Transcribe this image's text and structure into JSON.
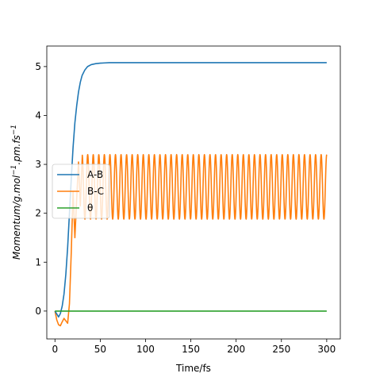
{
  "chart_data": {
    "type": "line",
    "title": "",
    "xlabel": "Time/fs",
    "ylabel_parts": {
      "base": "Momentum/g.mol",
      "sup1": "−1",
      "mid": ".pm.fs",
      "sup2": "−1"
    },
    "xlim": [
      -9,
      315
    ],
    "ylim": [
      -0.57,
      5.42
    ],
    "x_ticks": [
      0,
      50,
      100,
      150,
      200,
      250,
      300
    ],
    "y_ticks": [
      0,
      1,
      2,
      3,
      4,
      5
    ],
    "grid": false,
    "legend_position": "center-left",
    "series": [
      {
        "name": "A-B",
        "color": "#1f77b4",
        "x": [
          0,
          2,
          4,
          6,
          8,
          10,
          12,
          14,
          16,
          18,
          20,
          22,
          24,
          26,
          28,
          30,
          33,
          36,
          40,
          45,
          50,
          55,
          60,
          70,
          80,
          100,
          150,
          200,
          250,
          300
        ],
        "y": [
          0,
          -0.06,
          -0.12,
          -0.05,
          0.1,
          0.35,
          0.75,
          1.3,
          2.0,
          2.7,
          3.35,
          3.85,
          4.2,
          4.48,
          4.68,
          4.82,
          4.93,
          5.0,
          5.04,
          5.06,
          5.07,
          5.075,
          5.08,
          5.08,
          5.08,
          5.08,
          5.08,
          5.08,
          5.08,
          5.08
        ]
      },
      {
        "name": "B-C",
        "color": "#ff7f0e",
        "oscillation": {
          "start_x": 30,
          "end_x": 300,
          "max": 3.2,
          "min": 1.88,
          "cycles": 44
        },
        "x": [
          0,
          2,
          4,
          6,
          8,
          10,
          12,
          14,
          16,
          18,
          20,
          22,
          24,
          26,
          28,
          30
        ],
        "y": [
          0,
          -0.18,
          -0.28,
          -0.3,
          -0.22,
          -0.15,
          -0.2,
          -0.25,
          0.15,
          1.2,
          2.45,
          1.5,
          2.3,
          3.05,
          2.15,
          3.1
        ]
      },
      {
        "name": "θ",
        "color": "#2ca02c",
        "x": [
          0,
          300
        ],
        "y": [
          0,
          0
        ]
      }
    ]
  }
}
